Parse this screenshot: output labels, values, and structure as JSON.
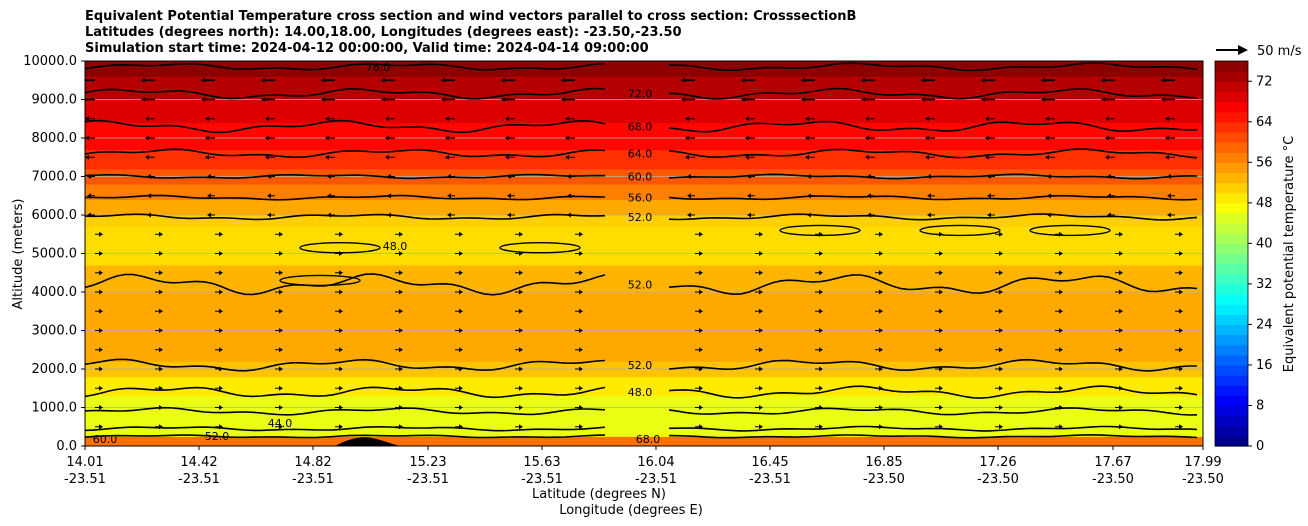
{
  "chart_data": {
    "type": "heatmap",
    "title_lines": [
      "Equivalent Potential Temperature cross section and wind vectors parallel to cross section: CrosssectionB",
      "Latitudes (degrees north): 14.00,18.00, Longitudes (degrees east): -23.50,-23.50",
      "Simulation start time: 2024-04-12 00:00:00, Valid time: 2024-04-14 09:00:00"
    ],
    "ylabel": "Altitude (meters)",
    "xlabel": "Latitude (degrees N)",
    "xlabel2": "Longitude (degrees E)",
    "ylim": [
      0,
      10000
    ],
    "xlim": [
      14.01,
      17.99
    ],
    "yticks": [
      {
        "value": 0,
        "label": "0.0"
      },
      {
        "value": 1000,
        "label": "1000.0"
      },
      {
        "value": 2000,
        "label": "2000.0"
      },
      {
        "value": 3000,
        "label": "3000.0"
      },
      {
        "value": 4000,
        "label": "4000.0"
      },
      {
        "value": 5000,
        "label": "5000.0"
      },
      {
        "value": 6000,
        "label": "6000.0"
      },
      {
        "value": 7000,
        "label": "7000.0"
      },
      {
        "value": 8000,
        "label": "8000.0"
      },
      {
        "value": 9000,
        "label": "9000.0"
      },
      {
        "value": 10000,
        "label": "10000.0"
      }
    ],
    "xticks": [
      {
        "lat": "14.01",
        "lon": "-23.51"
      },
      {
        "lat": "14.42",
        "lon": "-23.51"
      },
      {
        "lat": "14.82",
        "lon": "-23.51"
      },
      {
        "lat": "15.23",
        "lon": "-23.51"
      },
      {
        "lat": "15.63",
        "lon": "-23.51"
      },
      {
        "lat": "16.04",
        "lon": "-23.51"
      },
      {
        "lat": "16.45",
        "lon": "-23.51"
      },
      {
        "lat": "16.85",
        "lon": "-23.50"
      },
      {
        "lat": "17.26",
        "lon": "-23.50"
      },
      {
        "lat": "17.67",
        "lon": "-23.50"
      },
      {
        "lat": "17.99",
        "lon": "-23.50"
      }
    ],
    "colorbar": {
      "label": "Equivalent potential temperature $^\\circ$C",
      "label_display": "Equivalent potential temperature °C",
      "min": 0,
      "max": 76,
      "ticks": [
        0,
        8,
        16,
        24,
        32,
        40,
        48,
        56,
        64,
        72
      ],
      "colormap": "jet"
    },
    "quiver_key": {
      "label": "50 m/s"
    },
    "contour_levels": [
      {
        "value": 76,
        "label": "76.0",
        "altitude_m": 9850
      },
      {
        "value": 72,
        "label": "72.0",
        "altitude_m": 9150
      },
      {
        "value": 68,
        "label": "68.0",
        "altitude_m": 8300
      },
      {
        "value": 64,
        "label": "64.0",
        "altitude_m": 7600
      },
      {
        "value": 60,
        "label": "60.0",
        "altitude_m": 7000
      },
      {
        "value": 56,
        "label": "56.0",
        "altitude_m": 6450
      },
      {
        "value": 52,
        "label": "52.0",
        "altitude_m": 5950
      },
      {
        "value": 52,
        "label": "52.0",
        "altitude_m": 4200
      },
      {
        "value": 52,
        "label": "52.0",
        "altitude_m": 2100
      },
      {
        "value": 48,
        "label": "48.0",
        "altitude_m": 1400
      },
      {
        "value": 48,
        "label": "48.0",
        "altitude_m": 5200
      },
      {
        "value": 44,
        "label": "44.0",
        "altitude_m": 600
      }
    ],
    "contour_label_texts": [
      "76.0",
      "72.0",
      "68.0",
      "64.0",
      "60.0",
      "56.0",
      "52.0",
      "48.0",
      "44.0",
      "60.0",
      "68.0"
    ]
  }
}
